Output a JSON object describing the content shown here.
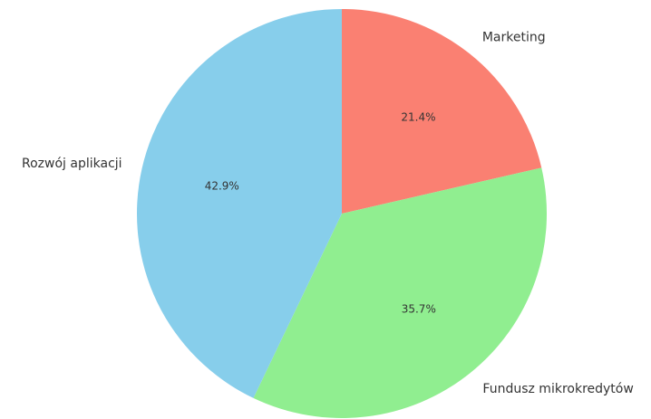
{
  "chart_data": {
    "type": "pie",
    "categories": [
      "Marketing",
      "Fundusz mikrokredytów",
      "Rozwój aplikacji"
    ],
    "values": [
      21.4,
      35.7,
      42.9
    ],
    "value_labels": [
      "21.4%",
      "35.7%",
      "42.9%"
    ],
    "colors": [
      "#fa8072",
      "#90ee90",
      "#87ceeb"
    ]
  }
}
